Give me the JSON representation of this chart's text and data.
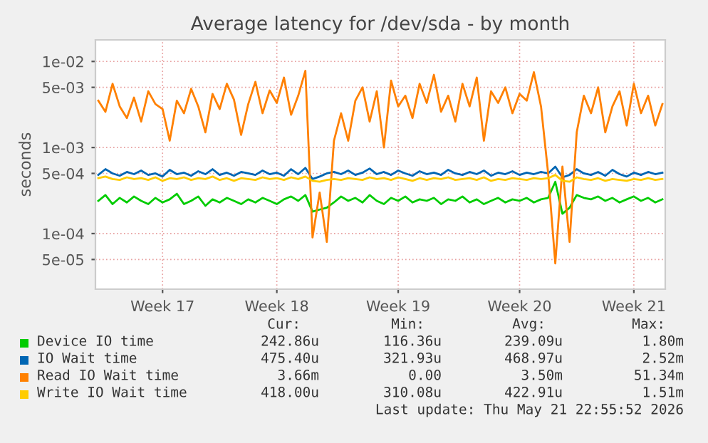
{
  "chart_data": {
    "type": "line",
    "title": "Average latency for /dev/sda - by month",
    "ylabel": "seconds",
    "log": true,
    "grid": true,
    "legend": "bottom",
    "categories": [
      null,
      null,
      null,
      null,
      null,
      null,
      null,
      null,
      null,
      "Week 17",
      null,
      null,
      null,
      null,
      null,
      null,
      null,
      null,
      null,
      null,
      null,
      null,
      null,
      null,
      null,
      "Week 18",
      null,
      null,
      null,
      null,
      null,
      null,
      null,
      null,
      null,
      null,
      null,
      null,
      null,
      null,
      null,
      null,
      "Week 19",
      null,
      null,
      null,
      null,
      null,
      null,
      null,
      null,
      null,
      null,
      null,
      null,
      null,
      null,
      null,
      null,
      "Week 20",
      null,
      null,
      null,
      null,
      null,
      null,
      null,
      null,
      null,
      null,
      null,
      null,
      null,
      null,
      null,
      "Week 21",
      null,
      null,
      null,
      null
    ],
    "ylim": [
      2.26e-05,
      0.0178
    ],
    "yticks": [
      {
        "value": 5e-05,
        "label": "5e-05"
      },
      {
        "value": 0.0001,
        "label": "1e-04"
      },
      {
        "value": 0.0005,
        "label": "5e-04"
      },
      {
        "value": 0.001,
        "label": "1e-03"
      },
      {
        "value": 0.005,
        "label": "5e-03"
      },
      {
        "value": 0.01,
        "label": "1e-02"
      }
    ],
    "series": [
      {
        "name": "Device IO time",
        "color": "#00cc00",
        "values": [
          0.00024,
          0.00028,
          0.00022,
          0.00026,
          0.00023,
          0.00027,
          0.00024,
          0.00022,
          0.00026,
          0.00023,
          0.00025,
          0.00029,
          0.00022,
          0.00024,
          0.00027,
          0.00021,
          0.00025,
          0.00023,
          0.00026,
          0.00024,
          0.00022,
          0.00025,
          0.00023,
          0.00026,
          0.00024,
          0.00022,
          0.00025,
          0.00027,
          0.00024,
          0.00028,
          0.00018,
          0.00019,
          0.0002,
          0.00023,
          0.00027,
          0.00024,
          0.00026,
          0.00023,
          0.00028,
          0.00024,
          0.00022,
          0.00026,
          0.00024,
          0.00027,
          0.00023,
          0.00025,
          0.00024,
          0.00026,
          0.00022,
          0.00025,
          0.00024,
          0.00027,
          0.00023,
          0.00025,
          0.00022,
          0.00024,
          0.00026,
          0.00023,
          0.00025,
          0.00024,
          0.00026,
          0.00023,
          0.00025,
          0.00026,
          0.0004,
          0.00017,
          0.0002,
          0.00028,
          0.00026,
          0.00025,
          0.00027,
          0.00024,
          0.00026,
          0.00023,
          0.00025,
          0.00027,
          0.00024,
          0.00026,
          0.00023,
          0.00025
        ]
      },
      {
        "name": "IO Wait time",
        "color": "#0066b3",
        "values": [
          0.00048,
          0.00056,
          0.0005,
          0.00047,
          0.00052,
          0.00049,
          0.00054,
          0.00048,
          0.0005,
          0.00046,
          0.00055,
          0.00049,
          0.00051,
          0.00047,
          0.00053,
          0.00049,
          0.00056,
          0.00048,
          0.00051,
          0.00047,
          0.00052,
          0.0005,
          0.00048,
          0.00054,
          0.00049,
          0.00051,
          0.00047,
          0.00056,
          0.00049,
          0.00058,
          0.00043,
          0.00046,
          0.0005,
          0.00052,
          0.00049,
          0.00054,
          0.00048,
          0.00051,
          0.00057,
          0.00049,
          0.00052,
          0.00048,
          0.00054,
          0.0005,
          0.00047,
          0.00053,
          0.00049,
          0.00051,
          0.00048,
          0.00055,
          0.0005,
          0.00048,
          0.00052,
          0.00049,
          0.00054,
          0.00047,
          0.00051,
          0.00049,
          0.00053,
          0.00048,
          0.00051,
          0.00049,
          0.00052,
          0.0005,
          0.0006,
          0.00045,
          0.00048,
          0.00056,
          0.0005,
          0.00048,
          0.00052,
          0.00047,
          0.00055,
          0.00049,
          0.00046,
          0.00051,
          0.00048,
          0.00052,
          0.00049,
          0.00051
        ]
      },
      {
        "name": "Read IO Wait time",
        "color": "#ff8000",
        "values": [
          0.0035,
          0.0026,
          0.0055,
          0.003,
          0.0022,
          0.0038,
          0.002,
          0.0045,
          0.0032,
          0.0028,
          0.0012,
          0.0035,
          0.0025,
          0.0048,
          0.003,
          0.0015,
          0.0042,
          0.0028,
          0.0055,
          0.0036,
          0.0014,
          0.0032,
          0.0058,
          0.0025,
          0.0046,
          0.0033,
          0.0065,
          0.0024,
          0.004,
          0.0078,
          9e-05,
          0.0003,
          8e-05,
          0.0012,
          0.0025,
          0.0012,
          0.0035,
          0.005,
          0.002,
          0.0045,
          0.001,
          0.006,
          0.003,
          0.004,
          0.0022,
          0.0055,
          0.0033,
          0.007,
          0.0026,
          0.004,
          0.002,
          0.0055,
          0.003,
          0.0065,
          0.0012,
          0.0045,
          0.0033,
          0.005,
          0.0025,
          0.0042,
          0.0035,
          0.0075,
          0.003,
          0.0005,
          4.5e-05,
          0.0006,
          8e-05,
          0.0015,
          0.004,
          0.0025,
          0.005,
          0.0015,
          0.003,
          0.0045,
          0.0018,
          0.0055,
          0.0025,
          0.004,
          0.0018,
          0.0032
        ]
      },
      {
        "name": "Write IO Wait time",
        "color": "#ffcc00",
        "values": [
          0.00044,
          0.00046,
          0.00043,
          0.00042,
          0.00045,
          0.00043,
          0.00044,
          0.00042,
          0.00045,
          0.00041,
          0.00044,
          0.00043,
          0.00045,
          0.00042,
          0.00044,
          0.00043,
          0.00046,
          0.00042,
          0.00044,
          0.00041,
          0.00044,
          0.00043,
          0.00042,
          0.00045,
          0.00043,
          0.00044,
          0.00042,
          0.00045,
          0.00043,
          0.00046,
          0.00041,
          0.0004,
          0.00042,
          0.00043,
          0.00042,
          0.00044,
          0.00043,
          0.00042,
          0.00045,
          0.00043,
          0.00044,
          0.00042,
          0.00045,
          0.00043,
          0.00041,
          0.00044,
          0.00042,
          0.00044,
          0.00043,
          0.00045,
          0.00042,
          0.00043,
          0.00044,
          0.00042,
          0.00045,
          0.00041,
          0.00043,
          0.00042,
          0.00044,
          0.00043,
          0.00042,
          0.00044,
          0.00043,
          0.00044,
          0.00048,
          0.00041,
          0.0004,
          0.00045,
          0.00043,
          0.00042,
          0.00044,
          0.00041,
          0.00043,
          0.00042,
          0.00041,
          0.00043,
          0.00042,
          0.00044,
          0.00042,
          0.00043
        ]
      }
    ],
    "annotations": [
      "Cur:",
      "Min:",
      "Avg:",
      "Max:",
      "242.86u",
      "116.36u",
      "239.09u",
      "1.80m",
      "475.40u",
      "321.93u",
      "468.97u",
      "2.52m",
      "3.66m",
      "0.00",
      "3.50m",
      "51.34m",
      "418.00u",
      "310.08u",
      "422.91u",
      "1.51m",
      "Last update: Thu May 21 22:55:52 2026"
    ]
  }
}
